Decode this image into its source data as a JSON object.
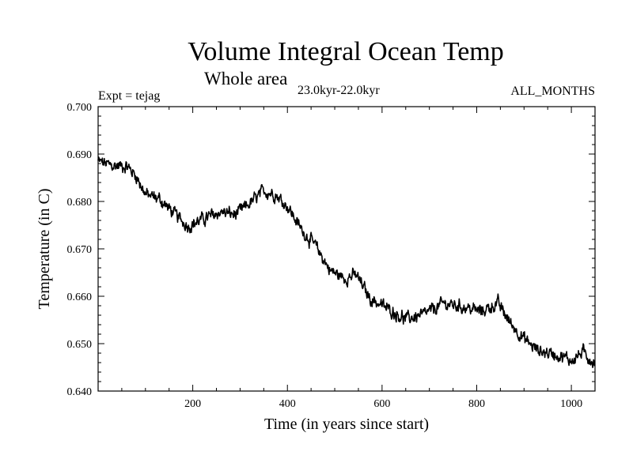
{
  "chart_data": {
    "type": "line",
    "title": "Volume Integral Ocean Temp",
    "subtitle": "Whole area",
    "period": "23.0kyr-22.0kyr",
    "experiment": "Expt = tejag",
    "months": "ALL_MONTHS",
    "xlabel": "Time (in years since start)",
    "ylabel": "Temperature (in C)",
    "xlim": [
      0,
      1050
    ],
    "ylim": [
      0.64,
      0.7
    ],
    "xticks": [
      200,
      400,
      600,
      800,
      1000
    ],
    "xtick_labels": [
      "200",
      "400",
      "600",
      "800",
      "1000"
    ],
    "yticks": [
      0.64,
      0.65,
      0.66,
      0.67,
      0.68,
      0.69,
      0.7
    ],
    "ytick_labels": [
      "0.640",
      "0.650",
      "0.660",
      "0.670",
      "0.680",
      "0.690",
      "0.700"
    ],
    "grid": false,
    "series": [
      {
        "name": "Volume integral ocean temperature",
        "trend_points": [
          [
            0,
            0.6885
          ],
          [
            30,
            0.6875
          ],
          [
            60,
            0.6875
          ],
          [
            80,
            0.6855
          ],
          [
            100,
            0.6815
          ],
          [
            130,
            0.6805
          ],
          [
            160,
            0.6775
          ],
          [
            190,
            0.6748
          ],
          [
            220,
            0.6762
          ],
          [
            260,
            0.6778
          ],
          [
            290,
            0.6772
          ],
          [
            320,
            0.6795
          ],
          [
            350,
            0.6822
          ],
          [
            375,
            0.6815
          ],
          [
            400,
            0.679
          ],
          [
            430,
            0.674
          ],
          [
            460,
            0.6705
          ],
          [
            490,
            0.6655
          ],
          [
            520,
            0.6638
          ],
          [
            545,
            0.6645
          ],
          [
            575,
            0.6595
          ],
          [
            610,
            0.6575
          ],
          [
            650,
            0.6552
          ],
          [
            690,
            0.6562
          ],
          [
            730,
            0.6585
          ],
          [
            770,
            0.6578
          ],
          [
            810,
            0.6568
          ],
          [
            845,
            0.6585
          ],
          [
            870,
            0.6545
          ],
          [
            900,
            0.651
          ],
          [
            930,
            0.6485
          ],
          [
            965,
            0.6478
          ],
          [
            1000,
            0.6465
          ],
          [
            1025,
            0.6482
          ],
          [
            1050,
            0.6458
          ]
        ],
        "noise_amplitude": 0.0012
      }
    ]
  }
}
